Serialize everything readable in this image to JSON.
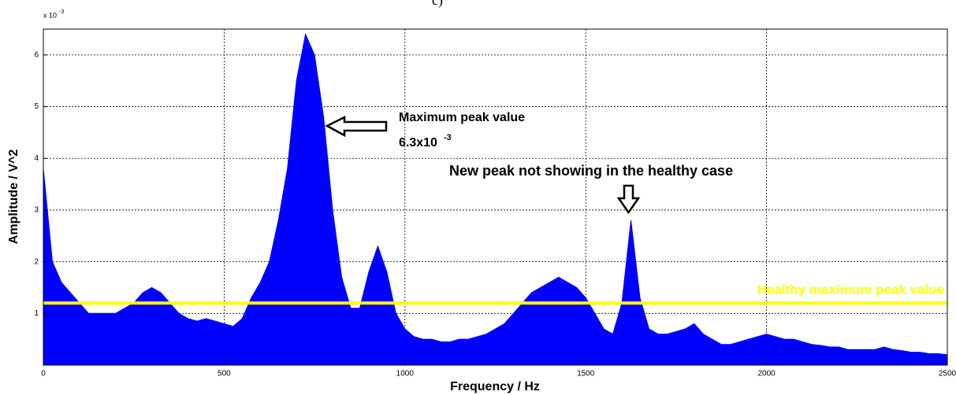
{
  "chart_data": {
    "type": "area",
    "title": "c)",
    "xlabel": "Frequency / Hz",
    "ylabel": "Amplitude / V^2",
    "y_multiplier": {
      "base": "x 10",
      "exponent": "-3"
    },
    "color": "#0000ff",
    "grid": true,
    "xlim": [
      0,
      2500
    ],
    "ylim": [
      0,
      6.5
    ],
    "xticks": [
      0,
      500,
      1000,
      1500,
      2000,
      2500
    ],
    "yticks": [
      1,
      2,
      3,
      4,
      5,
      6
    ],
    "x": [
      0,
      25,
      50,
      75,
      100,
      125,
      150,
      175,
      200,
      225,
      250,
      275,
      300,
      325,
      350,
      375,
      400,
      425,
      450,
      475,
      500,
      525,
      550,
      575,
      600,
      625,
      650,
      675,
      700,
      725,
      750,
      775,
      800,
      825,
      850,
      875,
      900,
      925,
      950,
      975,
      1000,
      1025,
      1050,
      1075,
      1100,
      1125,
      1150,
      1175,
      1200,
      1225,
      1250,
      1275,
      1300,
      1325,
      1350,
      1375,
      1400,
      1425,
      1450,
      1475,
      1500,
      1525,
      1550,
      1575,
      1600,
      1625,
      1650,
      1675,
      1700,
      1725,
      1750,
      1775,
      1800,
      1825,
      1850,
      1875,
      1900,
      1925,
      1950,
      1975,
      2000,
      2025,
      2050,
      2075,
      2100,
      2125,
      2150,
      2175,
      2200,
      2225,
      2250,
      2275,
      2300,
      2325,
      2350,
      2375,
      2400,
      2425,
      2450,
      2475,
      2500
    ],
    "values": [
      3.8,
      2.0,
      1.6,
      1.4,
      1.2,
      1.0,
      1.0,
      1.0,
      1.0,
      1.1,
      1.2,
      1.4,
      1.5,
      1.4,
      1.2,
      1.0,
      0.9,
      0.85,
      0.9,
      0.85,
      0.8,
      0.75,
      0.9,
      1.3,
      1.6,
      2.0,
      2.8,
      3.8,
      5.5,
      6.4,
      6.0,
      4.8,
      3.0,
      1.7,
      1.1,
      1.1,
      1.8,
      2.3,
      1.8,
      1.0,
      0.7,
      0.55,
      0.5,
      0.5,
      0.45,
      0.45,
      0.5,
      0.5,
      0.55,
      0.6,
      0.7,
      0.8,
      1.0,
      1.2,
      1.4,
      1.5,
      1.6,
      1.7,
      1.6,
      1.5,
      1.3,
      1.0,
      0.7,
      0.6,
      1.2,
      2.8,
      1.3,
      0.7,
      0.6,
      0.6,
      0.65,
      0.7,
      0.8,
      0.6,
      0.5,
      0.4,
      0.4,
      0.45,
      0.5,
      0.55,
      0.6,
      0.55,
      0.5,
      0.5,
      0.45,
      0.4,
      0.38,
      0.35,
      0.35,
      0.3,
      0.3,
      0.3,
      0.3,
      0.35,
      0.3,
      0.28,
      0.25,
      0.25,
      0.22,
      0.22,
      0.2
    ],
    "reference_line": {
      "value": 1.2,
      "label": "Healthy maximum peak value",
      "color": "#ffff00"
    },
    "annotations": {
      "max_peak_line1": "Maximum peak value",
      "max_peak_line2": "6.3x10",
      "max_peak_exponent": "-3",
      "new_peak": "New peak not showing in the healthy case"
    }
  }
}
